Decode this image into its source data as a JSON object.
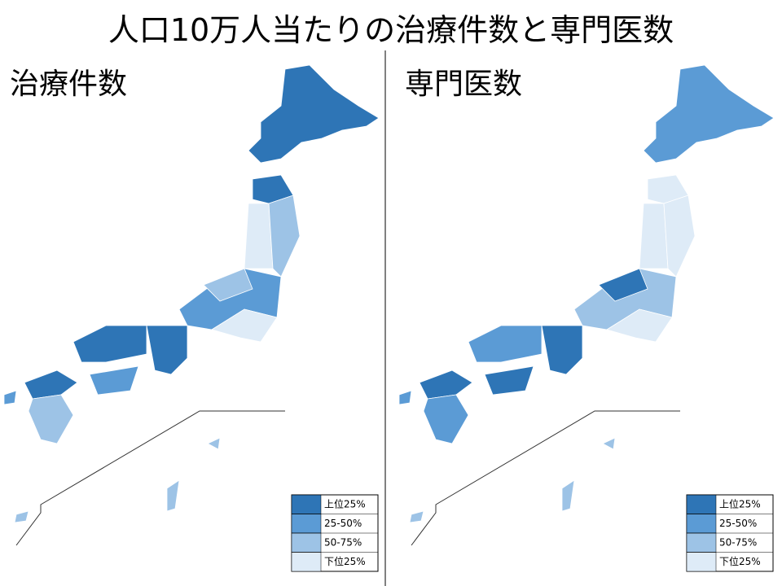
{
  "title": "人口10万人当たりの治療件数と専門医数",
  "maps": [
    {
      "title": "治療件数",
      "legend": [
        {
          "label": "上位25%",
          "color": "#2e75b6"
        },
        {
          "label": "25-50%",
          "color": "#5b9bd5"
        },
        {
          "label": "50-75%",
          "color": "#9dc3e6"
        },
        {
          "label": "下位25%",
          "color": "#deebf7"
        }
      ]
    },
    {
      "title": "専門医数",
      "legend": [
        {
          "label": "上位25%",
          "color": "#2e75b6"
        },
        {
          "label": "25-50%",
          "color": "#5b9bd5"
        },
        {
          "label": "50-75%",
          "color": "#9dc3e6"
        },
        {
          "label": "下位25%",
          "color": "#deebf7"
        }
      ]
    }
  ]
}
